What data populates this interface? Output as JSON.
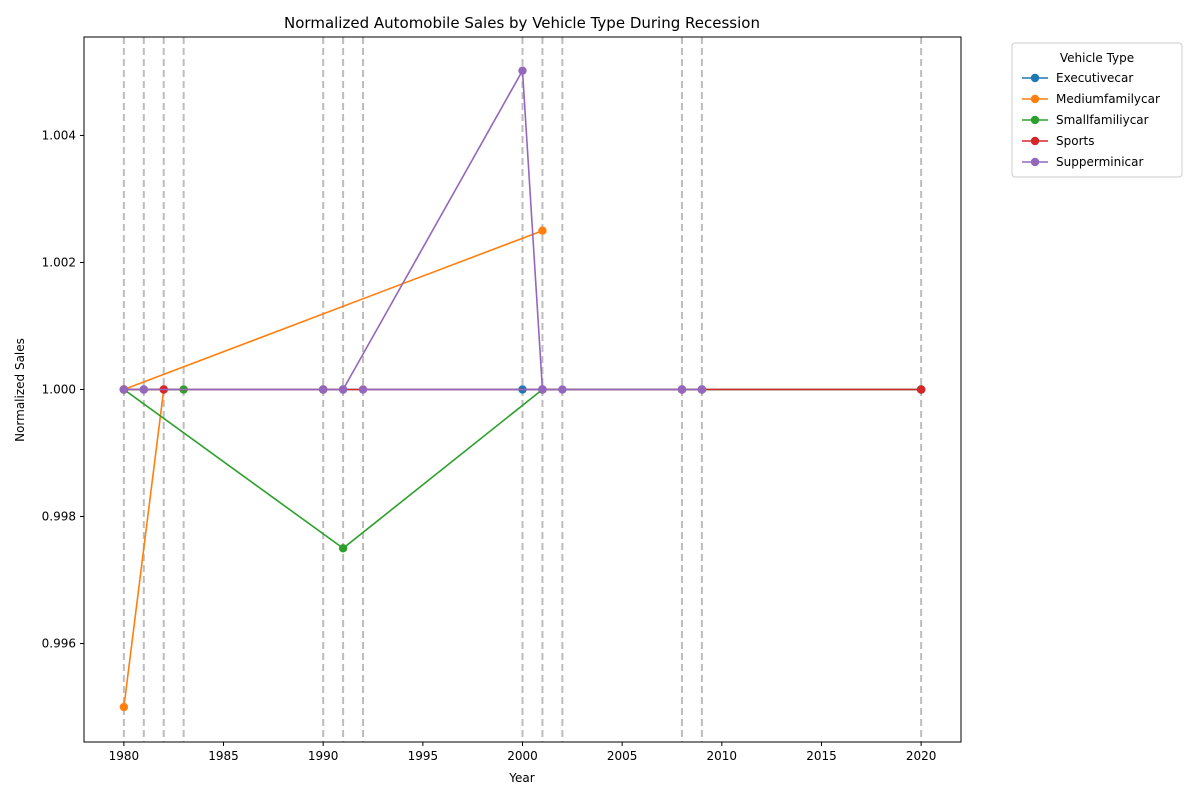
{
  "chart_data": {
    "type": "line",
    "title": "Normalized Automobile Sales by Vehicle Type During Recession",
    "xlabel": "Year",
    "ylabel": "Normalized Sales",
    "xlim": [
      1978,
      2022
    ],
    "ylim": [
      0.99445,
      1.00555
    ],
    "xticks": [
      1980,
      1985,
      1990,
      1995,
      2000,
      2005,
      2010,
      2015,
      2020
    ],
    "yticks": [
      0.996,
      0.998,
      1.0,
      1.002,
      1.004
    ],
    "ytick_labels": [
      "0.996",
      "0.998",
      "1.000",
      "1.002",
      "1.004"
    ],
    "grid": false,
    "recession_years": [
      1980,
      1981,
      1982,
      1983,
      1990,
      1991,
      1992,
      2000,
      2001,
      2002,
      2008,
      2009,
      2020
    ],
    "legend": {
      "title": "Vehicle Type",
      "placement": "outside-top-right"
    },
    "series": [
      {
        "name": "Executivecar",
        "color": "#1f77b4",
        "x": [
          1980,
          1981,
          1990,
          1991,
          2000,
          2001,
          2008,
          2009,
          2020
        ],
        "y": [
          1.0,
          1.0,
          1.0,
          1.0,
          1.0,
          1.0,
          1.0,
          1.0,
          1.0
        ]
      },
      {
        "name": "Mediumfamilycar",
        "color": "#ff7f0e",
        "x": [
          1980,
          1982,
          1980,
          2001
        ],
        "y": [
          0.995,
          1.0,
          1.0,
          1.0025
        ]
      },
      {
        "name": "Smallfamiliycar",
        "color": "#2ca02c",
        "x": [
          1983,
          1980,
          1991,
          2001,
          2009,
          2020
        ],
        "y": [
          1.0,
          1.0,
          0.9975,
          1.0,
          1.0,
          1.0
        ]
      },
      {
        "name": "Sports",
        "color": "#d62728",
        "x": [
          1980,
          1982,
          1990,
          2001,
          2008,
          2020
        ],
        "y": [
          1.0,
          1.0,
          1.0,
          1.0,
          1.0,
          1.0
        ]
      },
      {
        "name": "Supperminicar",
        "color": "#9467bd",
        "x": [
          1980,
          1981,
          1990,
          1991,
          2000,
          2001,
          1992,
          2002,
          2008,
          2009
        ],
        "y": [
          1.0,
          1.0,
          1.0,
          1.0,
          1.00502,
          1.0,
          1.0,
          1.0,
          1.0,
          1.0
        ]
      }
    ]
  }
}
